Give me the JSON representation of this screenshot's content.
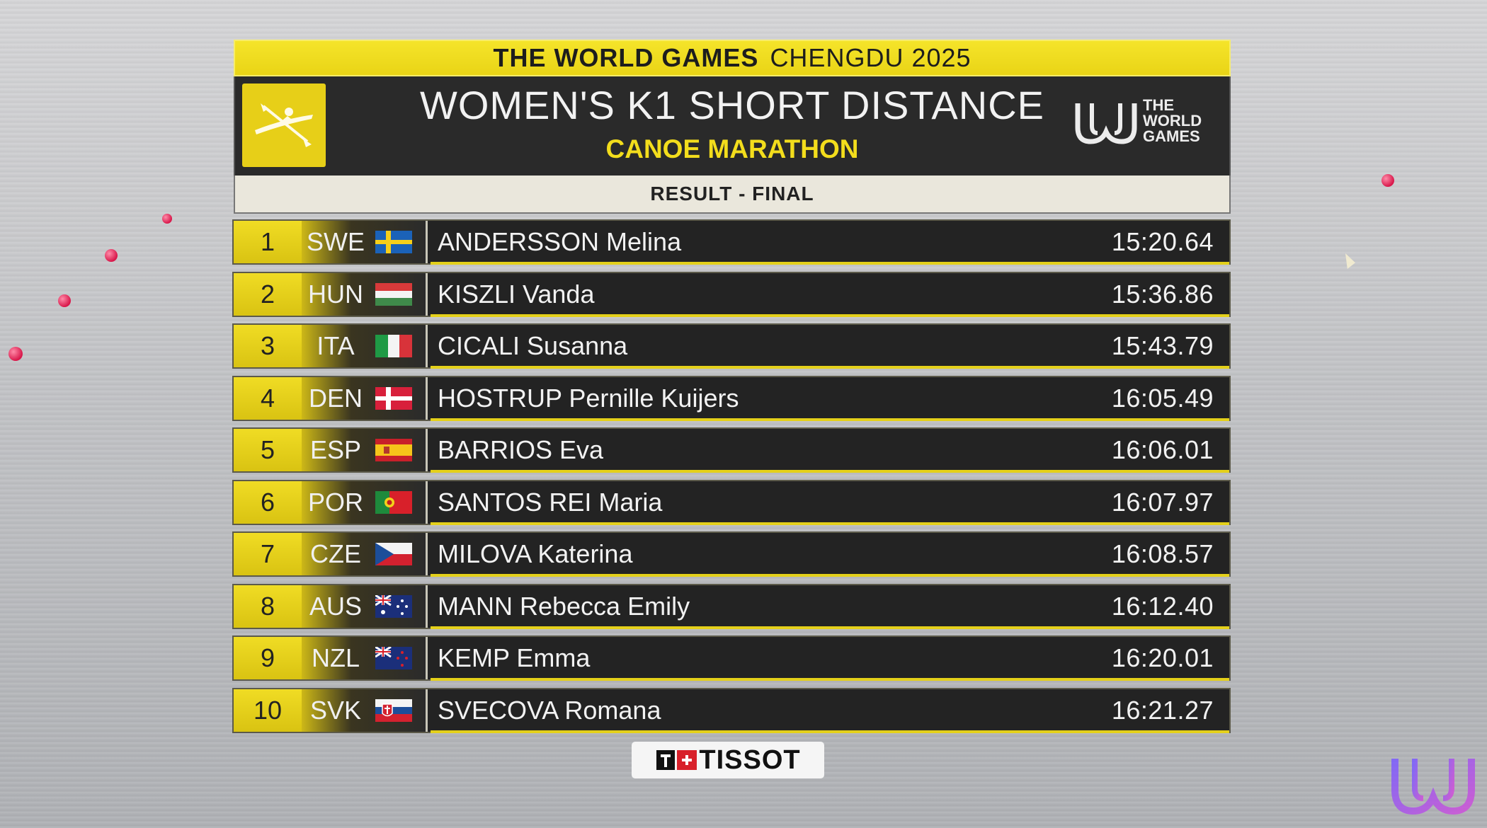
{
  "header": {
    "brand_bold": "THE WORLD GAMES",
    "brand_city": "CHENGDU 2025",
    "event_title": "WOMEN'S K1 SHORT DISTANCE",
    "event_discipline": "CANOE MARATHON",
    "result_label": "RESULT - FINAL",
    "logo_text": [
      "THE",
      "WORLD",
      "GAMES"
    ],
    "sport_icon": "canoe-paddler-icon"
  },
  "results": [
    {
      "rank": "1",
      "noc": "SWE",
      "name": "ANDERSSON Melina",
      "time": "15:20.64"
    },
    {
      "rank": "2",
      "noc": "HUN",
      "name": "KISZLI Vanda",
      "time": "15:36.86"
    },
    {
      "rank": "3",
      "noc": "ITA",
      "name": "CICALI Susanna",
      "time": "15:43.79"
    },
    {
      "rank": "4",
      "noc": "DEN",
      "name": "HOSTRUP Pernille Kuijers",
      "time": "16:05.49"
    },
    {
      "rank": "5",
      "noc": "ESP",
      "name": "BARRIOS Eva",
      "time": "16:06.01"
    },
    {
      "rank": "6",
      "noc": "POR",
      "name": "SANTOS REI Maria",
      "time": "16:07.97"
    },
    {
      "rank": "7",
      "noc": "CZE",
      "name": "MILOVA Katerina",
      "time": "16:08.57"
    },
    {
      "rank": "8",
      "noc": "AUS",
      "name": "MANN Rebecca Emily",
      "time": "16:12.40"
    },
    {
      "rank": "9",
      "noc": "NZL",
      "name": "KEMP Emma",
      "time": "16:20.01"
    },
    {
      "rank": "10",
      "noc": "SVK",
      "name": "SVECOVA Romana",
      "time": "16:21.27"
    }
  ],
  "sponsor": {
    "label": "TISSOT"
  },
  "colors": {
    "accent_yellow": "#e9d416",
    "panel_dark": "#232323",
    "result_bar": "#eae7dc"
  }
}
